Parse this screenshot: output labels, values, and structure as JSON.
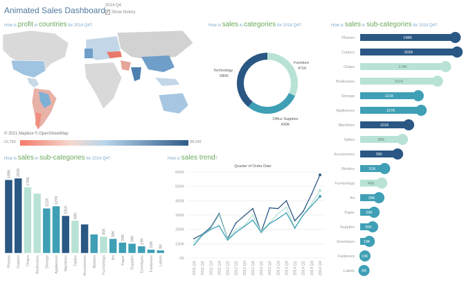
{
  "header": {
    "title": "Animated Sales Dashboard",
    "period": "2014 Q4",
    "show_history_label": "Show history",
    "show_history_checked": true
  },
  "colors": {
    "technology": "#2a5783",
    "office_supplies": "#3e9fb5",
    "furniture": "#b8e2d5",
    "title": "#4f77a0",
    "keyword": "#6aa85a",
    "question": "#7ea6c8"
  },
  "map": {
    "q_pre": "How is",
    "q_k1": "profit",
    "q_mid": "in",
    "q_k2": "countries",
    "q_post": "for 2014 Q4?",
    "attribution": "© 2021 Mapbox © OpenStreetMap",
    "legend_min": "-13,793",
    "legend_max": "38,042",
    "legend_low_color": "#f4796a",
    "legend_high_color": "#2f5b8a"
  },
  "donut": {
    "q_pre": "How is",
    "q_k1": "sales",
    "q_mid": "in",
    "q_k2": "categories",
    "q_post": "for 2014 Q4?"
  },
  "bars": {
    "q_pre": "How is",
    "q_k1": "sales",
    "q_mid": "in",
    "q_k2": "sub-categories",
    "q_post": "for 2014 Q4?"
  },
  "trend": {
    "q_pre": "How is",
    "q_k1": "sales trend",
    "q_post": "?"
  },
  "lollipop": {
    "q_pre": "How is",
    "q_k1": "sales",
    "q_mid": "in",
    "q_k2": "sub-categories",
    "q_post": "for 2014 Q4?"
  },
  "chart_data": [
    {
      "type": "pie",
      "variant": "donut",
      "categories": [
        "Furniture",
        "Office Supplies",
        "Technology"
      ],
      "values": [
        471,
        430,
        580
      ],
      "labels": [
        "471K",
        "430K",
        "580K"
      ],
      "unit": "K"
    },
    {
      "type": "bar",
      "categories": [
        "Phones",
        "Copiers",
        "Chairs",
        "Bookcases",
        "Storage",
        "Appliances",
        "Machines",
        "Tables",
        "Accessories",
        "Binders",
        "Furnishings",
        "Art",
        "Paper",
        "Supplies",
        "Envelopes",
        "Fasteners",
        "Labels"
      ],
      "values": [
        198,
        202,
        178,
        161,
        121,
        127,
        101,
        88,
        78,
        51,
        45,
        39,
        29,
        26,
        19,
        10,
        8
      ],
      "labels": [
        "198K",
        "202K",
        "178K",
        "",
        "121K",
        "127K",
        "101K",
        "88K",
        "",
        "",
        "45K",
        "39K",
        "29K",
        "26K",
        "19K",
        "10K",
        "8K"
      ],
      "category_of": [
        "technology",
        "technology",
        "furniture",
        "furniture",
        "office_supplies",
        "office_supplies",
        "technology",
        "furniture",
        "technology",
        "office_supplies",
        "furniture",
        "office_supplies",
        "office_supplies",
        "office_supplies",
        "office_supplies",
        "office_supplies",
        "office_supplies"
      ],
      "unit": "K"
    },
    {
      "type": "line",
      "title": "Quarter of Order Date",
      "x": [
        "2011 Q1",
        "2011 Q2",
        "2011 Q3",
        "2011 Q4",
        "2012 Q1",
        "2012 Q2",
        "2012 Q3",
        "2012 Q4",
        "2013 Q1",
        "2013 Q2",
        "2013 Q3",
        "2013 Q4",
        "2014 Q1",
        "2014 Q2",
        "2014 Q3",
        "2014 Q4"
      ],
      "ylim": [
        0,
        600
      ],
      "yticks": [
        "0K",
        "100K",
        "200K",
        "300K",
        "400K",
        "500K",
        "600K"
      ],
      "grid": true,
      "series": [
        {
          "key": "technology",
          "values": [
            135,
            165,
            215,
            310,
            135,
            245,
            295,
            345,
            180,
            350,
            345,
            400,
            260,
            325,
            445,
            580
          ]
        },
        {
          "key": "furniture",
          "values": [
            110,
            160,
            205,
            300,
            130,
            200,
            225,
            300,
            185,
            245,
            310,
            355,
            205,
            300,
            380,
            471
          ]
        },
        {
          "key": "office_supplies",
          "values": [
            90,
            160,
            200,
            225,
            125,
            180,
            220,
            265,
            180,
            240,
            275,
            315,
            210,
            300,
            365,
            430
          ]
        }
      ]
    },
    {
      "type": "bar",
      "orientation": "horizontal",
      "variant": "lollipop",
      "categories": [
        "Phones",
        "Copiers",
        "Chairs",
        "Bookcases",
        "Storage",
        "Appliances",
        "Machines",
        "Tables",
        "Accessories",
        "Binders",
        "Furnishings",
        "Art",
        "Paper",
        "Supplies",
        "Envelopes",
        "Fasteners",
        "Labels"
      ],
      "values": [
        198,
        202,
        178,
        161,
        121,
        127,
        101,
        88,
        78,
        51,
        45,
        39,
        29,
        26,
        19,
        10,
        8
      ],
      "labels": [
        "198K",
        "202K",
        "178K",
        "161K",
        "121K",
        "127K",
        "101K",
        "88K",
        "78K",
        "51K",
        "45K",
        "39K",
        "29K",
        "26K",
        "19K",
        "10K",
        "8K"
      ],
      "unit": "K"
    }
  ]
}
